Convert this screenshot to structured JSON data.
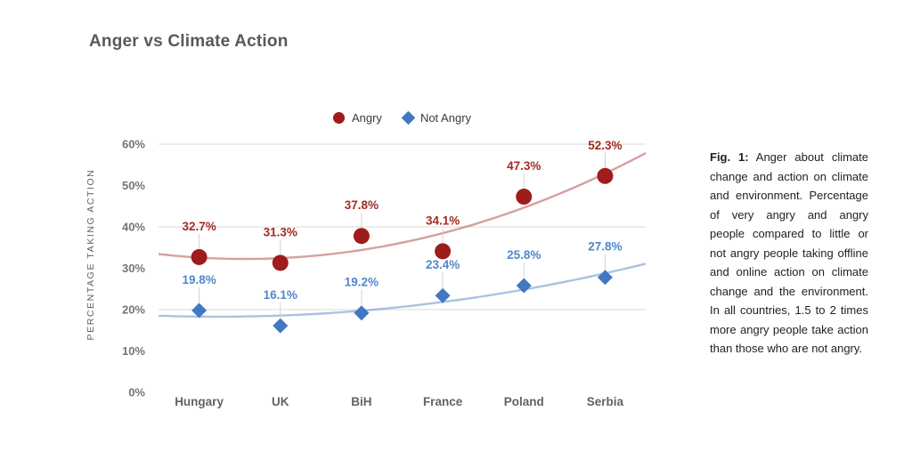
{
  "title": "Anger vs Climate Action",
  "legend": {
    "items": [
      {
        "label": "Angry",
        "marker": "circle",
        "color": "#9e1c1c"
      },
      {
        "label": "Not Angry",
        "marker": "diamond",
        "color": "#4178c0"
      }
    ]
  },
  "chart_data": {
    "type": "scatter",
    "title": "Anger vs Climate Action",
    "categories": [
      "Hungary",
      "UK",
      "BiH",
      "France",
      "Poland",
      "Serbia"
    ],
    "series": [
      {
        "name": "Angry",
        "marker": "circle",
        "color": "#9e1c1c",
        "label_color": "#a52a21",
        "trend_color": "rgba(158,28,28,0.42)",
        "values": [
          32.7,
          31.3,
          37.8,
          34.1,
          47.3,
          52.3
        ]
      },
      {
        "name": "Not Angry",
        "marker": "diamond",
        "color": "#4178c0",
        "label_color": "#5187c9",
        "trend_color": "rgba(65,120,192,0.45)",
        "values": [
          19.8,
          16.1,
          19.2,
          23.4,
          25.8,
          27.8
        ]
      }
    ],
    "xlabel": "",
    "ylabel": "PERCENTAGE TAKING ACTION",
    "ylim": [
      0,
      60
    ],
    "ytick_step": 10,
    "gridline_step": 20,
    "tick_format": "%",
    "value_format": "one_decimal_percent",
    "grid": true,
    "grid_color": "#d9d9d9",
    "leader_color": "#d2d2d2",
    "ytick_color": "#757575",
    "xtick_color": "#5f6368",
    "legend_position": "top",
    "trendline": "quadratic",
    "data_labels": true
  },
  "caption": {
    "label": "Fig. 1:",
    "body": "Anger about climate change and action on climate and environment. Percentage of very angry and angry people compared to little or not angry people taking offline and online action on climate change and the environment. In all countries, 1.5 to 2 times more angry people take action than those who are not angry."
  }
}
